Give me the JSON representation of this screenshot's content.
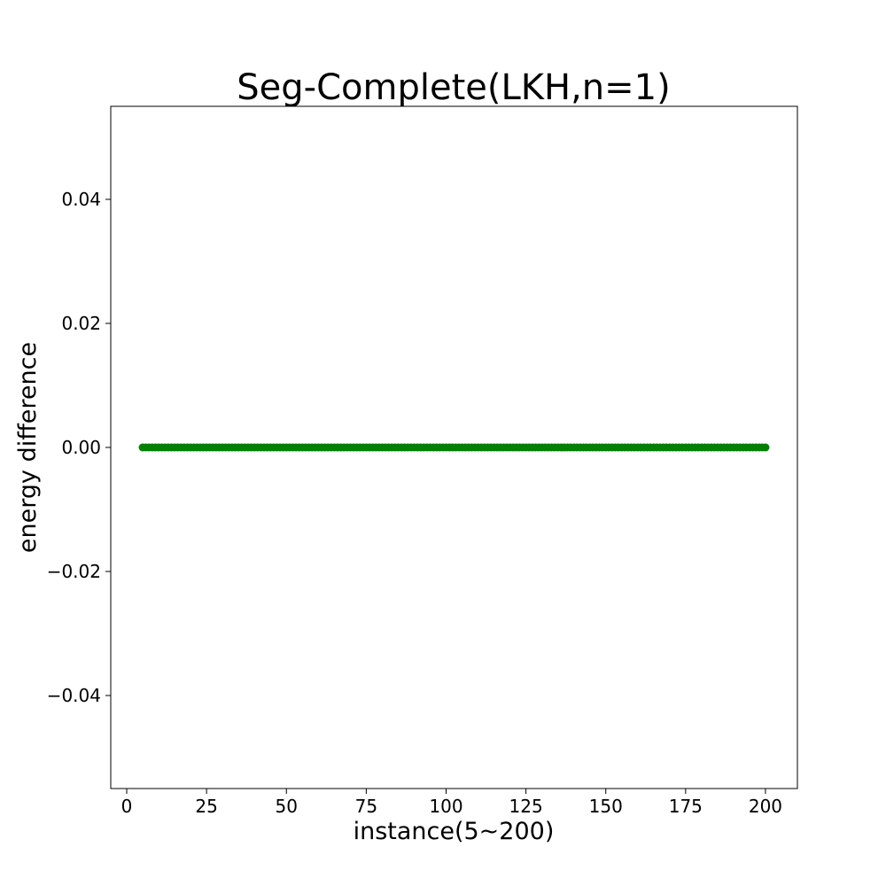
{
  "chart_data": {
    "type": "scatter",
    "title": "Seg-Complete(LKH,n=1)",
    "xlabel": "instance(5~200)",
    "ylabel": "energy difference",
    "xlim": [
      -5,
      210
    ],
    "ylim": [
      -0.055,
      0.055
    ],
    "x_ticks": [
      0,
      25,
      50,
      75,
      100,
      125,
      150,
      175,
      200
    ],
    "x_tick_labels": [
      "0",
      "25",
      "50",
      "75",
      "100",
      "125",
      "150",
      "175",
      "200"
    ],
    "y_ticks": [
      -0.04,
      -0.02,
      0.0,
      0.02,
      0.04
    ],
    "y_tick_labels": [
      "−0.04",
      "−0.02",
      "0.00",
      "0.02",
      "0.04"
    ],
    "grid": false,
    "series": [
      {
        "color": "#008000",
        "x_start": 5,
        "x_end": 200,
        "x_step": 1,
        "y_constant": 0.0
      }
    ]
  }
}
